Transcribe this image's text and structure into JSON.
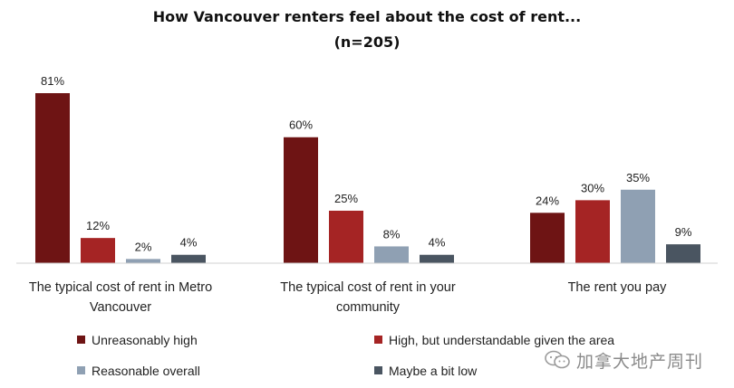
{
  "chart_data": {
    "type": "bar",
    "title": "How Vancouver renters feel about the cost of rent...",
    "subtitle": "(n=205)",
    "categories": [
      [
        "The typical cost of rent in Metro",
        "Vancouver"
      ],
      [
        "The typical cost of rent in your",
        "community"
      ],
      [
        "The rent you pay"
      ]
    ],
    "series": [
      {
        "name": "Unreasonably high",
        "color": "#6e1414",
        "values": [
          81,
          60,
          24
        ],
        "labels": [
          "81%",
          "60%",
          "24%"
        ]
      },
      {
        "name": "High, but understandable given the area",
        "color": "#a52424",
        "values": [
          12,
          25,
          30
        ],
        "labels": [
          "12%",
          "25%",
          "30%"
        ]
      },
      {
        "name": "Reasonable overall",
        "color": "#8fa0b3",
        "values": [
          2,
          8,
          35
        ],
        "labels": [
          "2%",
          "8%",
          "35%"
        ]
      },
      {
        "name": "Maybe a bit low",
        "color": "#4a5561",
        "values": [
          4,
          4,
          9
        ],
        "labels": [
          "4%",
          "4%",
          "9%"
        ]
      }
    ],
    "ylim": [
      0,
      100
    ],
    "grid": false,
    "legend_position": "bottom"
  },
  "watermark": {
    "text": "加拿大地产周刊",
    "icon": "wechat-icon"
  }
}
